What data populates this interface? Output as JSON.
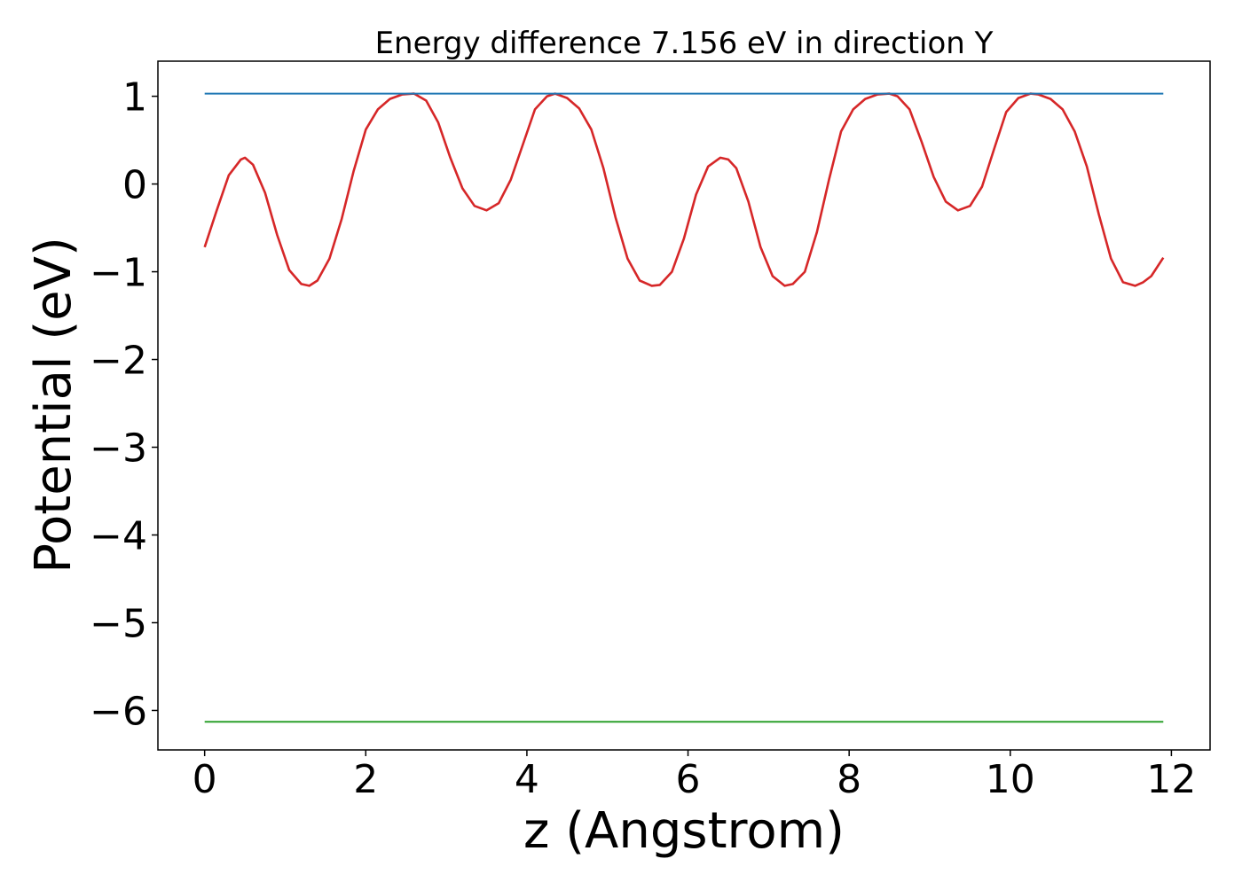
{
  "chart_data": {
    "type": "line",
    "title": "Energy difference 7.156 eV in direction Y",
    "xlabel": "z (Angstrom)",
    "ylabel": "Potential (eV)",
    "xlim": [
      -0.58,
      12.48
    ],
    "ylim": [
      -6.45,
      1.4
    ],
    "xticks": [
      0,
      2,
      4,
      6,
      8,
      10,
      12
    ],
    "xtick_labels": [
      "0",
      "2",
      "4",
      "6",
      "8",
      "10",
      "12"
    ],
    "yticks": [
      1,
      0,
      -1,
      -2,
      -3,
      -4,
      -5,
      -6
    ],
    "ytick_labels": [
      "1",
      "0",
      "−1",
      "−2",
      "−3",
      "−4",
      "−5",
      "−6"
    ],
    "grid": false,
    "series": [
      {
        "color": "#d62728",
        "x": [
          0.0,
          0.15,
          0.3,
          0.45,
          0.5,
          0.6,
          0.75,
          0.9,
          1.05,
          1.2,
          1.3,
          1.4,
          1.55,
          1.7,
          1.85,
          2.0,
          2.15,
          2.3,
          2.45,
          2.6,
          2.75,
          2.9,
          3.05,
          3.2,
          3.35,
          3.5,
          3.65,
          3.8,
          3.95,
          4.1,
          4.25,
          4.35,
          4.5,
          4.65,
          4.8,
          4.95,
          5.1,
          5.25,
          5.4,
          5.55,
          5.65,
          5.8,
          5.95,
          6.1,
          6.25,
          6.4,
          6.5,
          6.6,
          6.75,
          6.9,
          7.05,
          7.2,
          7.3,
          7.45,
          7.6,
          7.75,
          7.9,
          8.05,
          8.2,
          8.35,
          8.5,
          8.6,
          8.75,
          8.9,
          9.05,
          9.2,
          9.35,
          9.5,
          9.65,
          9.8,
          9.95,
          10.1,
          10.25,
          10.35,
          10.5,
          10.65,
          10.8,
          10.95,
          11.1,
          11.25,
          11.4,
          11.55,
          11.65,
          11.75,
          11.9
        ],
        "y": [
          -0.72,
          -0.3,
          0.1,
          0.28,
          0.3,
          0.22,
          -0.1,
          -0.58,
          -0.98,
          -1.14,
          -1.16,
          -1.1,
          -0.85,
          -0.4,
          0.15,
          0.62,
          0.85,
          0.97,
          1.02,
          1.03,
          0.95,
          0.7,
          0.3,
          -0.05,
          -0.25,
          -0.3,
          -0.22,
          0.05,
          0.45,
          0.85,
          1.0,
          1.03,
          0.98,
          0.86,
          0.62,
          0.18,
          -0.38,
          -0.85,
          -1.1,
          -1.16,
          -1.15,
          -1.0,
          -0.62,
          -0.12,
          0.2,
          0.3,
          0.28,
          0.18,
          -0.2,
          -0.72,
          -1.05,
          -1.16,
          -1.14,
          -1.0,
          -0.55,
          0.05,
          0.6,
          0.85,
          0.97,
          1.02,
          1.03,
          1.0,
          0.85,
          0.48,
          0.08,
          -0.2,
          -0.3,
          -0.25,
          -0.03,
          0.4,
          0.82,
          0.98,
          1.03,
          1.02,
          0.97,
          0.85,
          0.6,
          0.2,
          -0.35,
          -0.85,
          -1.12,
          -1.16,
          -1.12,
          -1.05,
          -0.84
        ]
      },
      {
        "color": "#1f77b4",
        "x": [
          0,
          11.9
        ],
        "y": [
          1.03,
          1.03
        ]
      },
      {
        "color": "#2ca02c",
        "x": [
          0,
          11.9
        ],
        "y": [
          -6.13,
          -6.13
        ]
      }
    ]
  }
}
